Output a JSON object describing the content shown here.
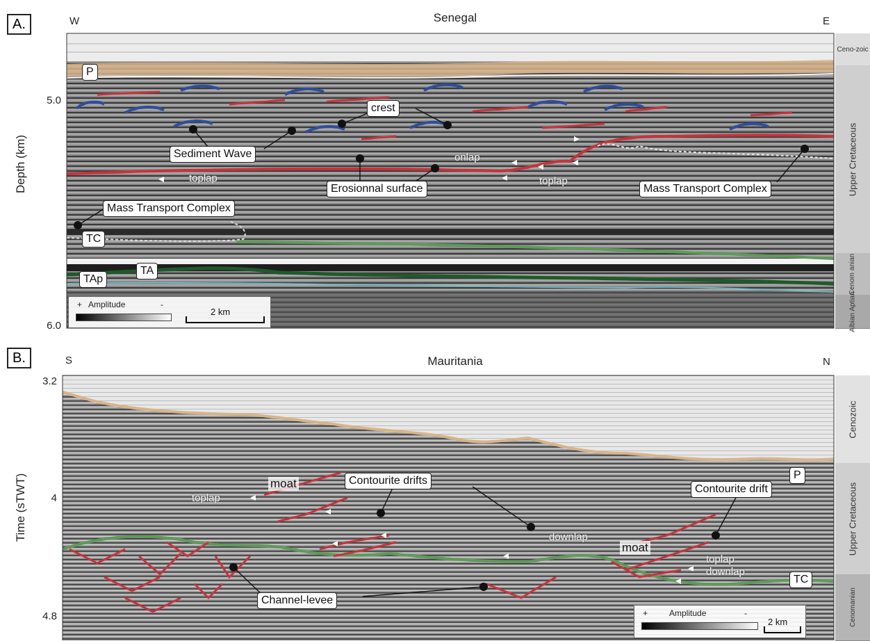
{
  "panel_a": {
    "label": "A.",
    "west": "W",
    "east": "E",
    "region": "Senegal",
    "y_axis_title": "Depth (km)",
    "y_ticks": [
      "5.0",
      "6.0"
    ],
    "strip": [
      "Ceno-zoic",
      "Upper Cretaceous",
      "Cenom anian",
      "Albian Aptian"
    ],
    "labels": {
      "p": "P",
      "crest": "crest",
      "sediment_wave": "Sediment Wave",
      "onlap": "onlap",
      "toplap_1": "toplap",
      "toplap_2": "toplap",
      "erosional_surface": "Erosionnal surface",
      "mtc_right": "Mass Transport Complex",
      "mtc_left": "Mass Transport Complex",
      "tc": "TC",
      "ta": "TA",
      "tap": "TAp"
    },
    "legend": {
      "title": "Amplitude",
      "plus": "+",
      "minus": "-",
      "scale": "2 km"
    }
  },
  "panel_b": {
    "label": "B.",
    "south": "S",
    "north": "N",
    "region": "Mauritania",
    "y_axis_title": "Time (sTWT)",
    "y_ticks": [
      "3.2",
      "4",
      "4.8"
    ],
    "strip": [
      "Cenozoic",
      "Upper Cretaceous",
      "Cenomanian"
    ],
    "labels": {
      "p": "P",
      "toplap_1": "toplap",
      "moat_1": "moat",
      "contourite_drifts": "Contourite drifts",
      "contourite_drift": "Contourite drift",
      "downlap_1": "downlap",
      "moat_2": "moat",
      "toplap_2": "toplap",
      "downlap_2": "downlap",
      "tc": "TC",
      "channel_levee": "Channel-levee"
    },
    "legend": {
      "title": "Amplitude",
      "plus": "+",
      "minus": "-",
      "scale": "2 km"
    }
  },
  "colors": {
    "red_horizon": "#c8323c",
    "blue_horizon": "#2e4e9c",
    "green_horizon": "#5e9a5a",
    "dark_green": "#1f5a2a",
    "tan_seafloor": "#d8b48a",
    "strip_gray": "#cfcfcf"
  }
}
